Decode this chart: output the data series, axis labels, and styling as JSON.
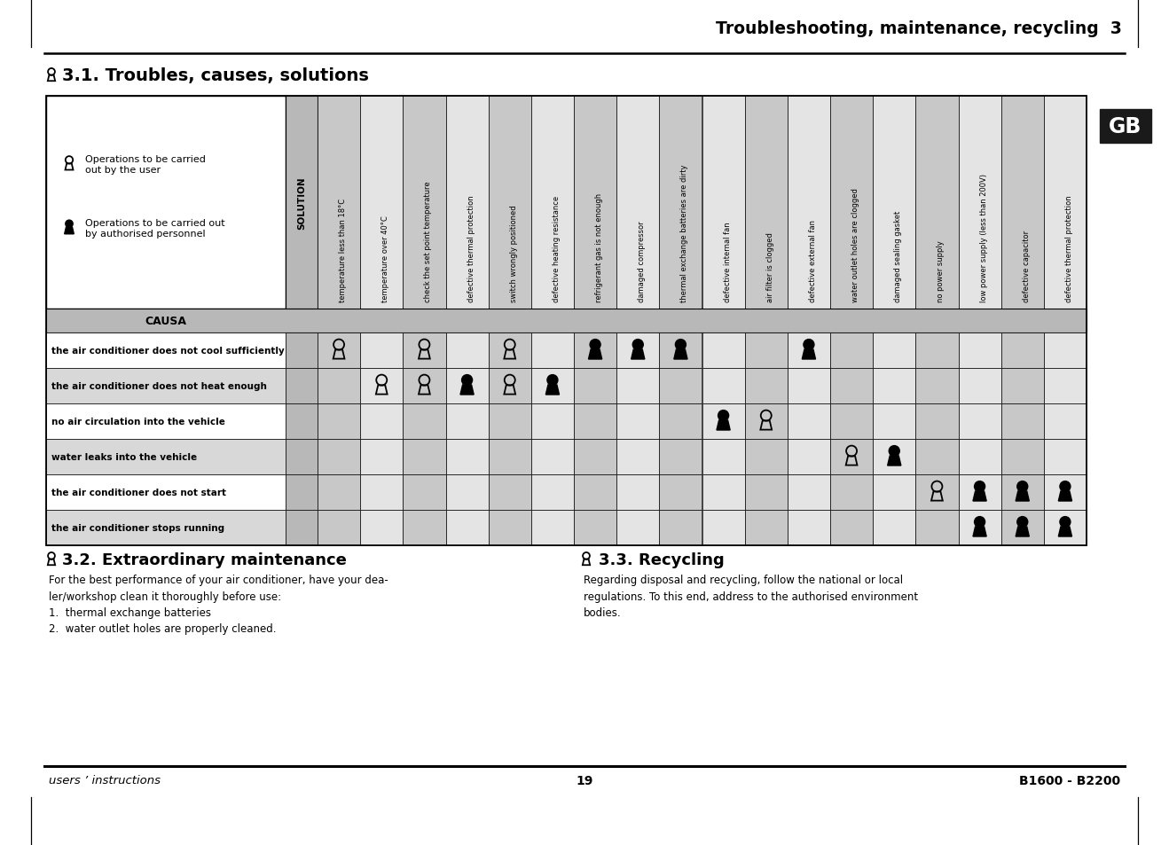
{
  "page_title": "Troubleshooting, maintenance, recycling  3",
  "section_title": "3.1. Troubles, causes, solutions",
  "gb_label": "GB",
  "causa_label": "CAUSA",
  "solution_label": "SOLUTION",
  "col_headers": [
    "temperature less than 18°C",
    "temperature over 40°C",
    "check the set point temperature",
    "defective thermal protection",
    "switch wrongly positioned",
    "defective heating resistance",
    "refrigerant gas is not enough",
    "damaged compressor",
    "thermal exchange batteries are dirty",
    "defective internal fan",
    "air filter is clogged",
    "defective external fan",
    "water outlet holes are clogged",
    "damaged sealing gasket",
    "no power supply",
    "low power supply (less than 200V)",
    "defective capacitor",
    "defective thermal protection"
  ],
  "row_labels": [
    "the air conditioner does not cool sufficiently",
    "the air conditioner does not heat enough",
    "no air circulation into the vehicle",
    "water leaks into the vehicle",
    "the air conditioner does not start",
    "the air conditioner stops running"
  ],
  "legend_user_text": "Operations to be carried\nout by the user",
  "legend_auth_text": "Operations to be carried out\nby authorised personnel",
  "section_32_title": "3.2. Extraordinary maintenance",
  "section_32_text": "For the best performance of your air conditioner, have your dea-\nler/workshop clean it thoroughly before use:\n1.  thermal exchange batteries\n2.  water outlet holes are properly cleaned.",
  "section_33_title": "3.3. Recycling",
  "section_33_text": "Regarding disposal and recycling, follow the national or local\nregulations. To this end, address to the authorised environment\nbodies.",
  "footer_left": "users ’ instructions",
  "footer_center": "19",
  "footer_right": "B1600 - B2200",
  "bg_color": "#ffffff",
  "cell_marks": {
    "0": {
      "0": "user",
      "2": "user",
      "4": "user",
      "6": "auth",
      "7": "auth",
      "8": "auth",
      "11": "auth"
    },
    "1": {
      "1": "user",
      "2": "user",
      "3": "auth",
      "4": "user",
      "5": "auth"
    },
    "2": {
      "9": "auth",
      "10": "user"
    },
    "3": {
      "12": "user",
      "13": "auth"
    },
    "4": {
      "14": "user",
      "15": "auth",
      "16": "auth",
      "17": "auth"
    },
    "5": {
      "15": "auth",
      "16": "auth",
      "17": "auth"
    }
  }
}
